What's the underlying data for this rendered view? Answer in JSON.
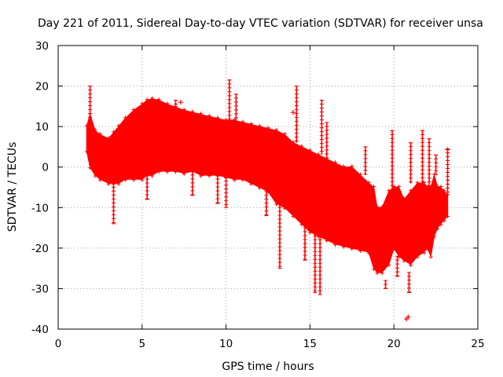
{
  "chart_data": {
    "type": "scatter",
    "title": "Day 221 of 2011, Sidereal Day-to-day VTEC variation (SDTVAR) for receiver unsa",
    "xlabel": "GPS time / hours",
    "ylabel": "SDTVAR / TECUs",
    "xlim": [
      0,
      25
    ],
    "ylim": [
      -40,
      30
    ],
    "xticks": [
      0,
      5,
      10,
      15,
      20,
      25
    ],
    "yticks": [
      -40,
      -30,
      -20,
      -10,
      0,
      10,
      20,
      30
    ],
    "xtick_labels": [
      "0",
      "5",
      "10",
      "15",
      "20",
      "25"
    ],
    "ytick_labels": [
      "-40",
      "-30",
      "-20",
      "-10",
      "0",
      "10",
      "20",
      "30"
    ],
    "grid": true,
    "marker": "+",
    "color": "#ff0000",
    "series": [
      {
        "name": "SDTVAR",
        "envelope": {
          "x": [
            1.7,
            1.9,
            2.2,
            2.5,
            3.0,
            3.3,
            3.6,
            4.0,
            4.5,
            5.0,
            5.3,
            5.6,
            6.0,
            6.5,
            7.0,
            7.5,
            8.0,
            8.5,
            9.0,
            9.5,
            10.0,
            10.5,
            11.0,
            11.5,
            12.0,
            12.5,
            13.0,
            13.5,
            14.0,
            14.5,
            15.0,
            15.5,
            16.0,
            16.5,
            17.0,
            17.5,
            18.0,
            18.5,
            18.8,
            19.0,
            19.3,
            19.7,
            20.0,
            20.3,
            20.6,
            21.0,
            21.4,
            21.8,
            22.0,
            22.2,
            22.4,
            22.6,
            22.8,
            23.0,
            23.2
          ],
          "upper": [
            10,
            13,
            9,
            8,
            7,
            8.5,
            10,
            12,
            14,
            15.5,
            16.5,
            16.8,
            16.5,
            15.5,
            14.8,
            14,
            13.5,
            13,
            12.5,
            12,
            11.5,
            11.5,
            11,
            10.5,
            10,
            9.5,
            9,
            8,
            6,
            5,
            4,
            3,
            2,
            1,
            0,
            0,
            -2,
            -4,
            -5,
            -10,
            -10,
            -6,
            -5,
            -5,
            -8,
            -6,
            -4,
            -4,
            -5,
            -5,
            -2,
            -5,
            -5,
            -6,
            -7
          ],
          "lower": [
            4,
            0,
            -2,
            -3,
            -4,
            -4,
            -4,
            -3,
            -3,
            -3,
            -2,
            -2,
            -1,
            -1,
            -1,
            -1.5,
            -1,
            -2,
            -2,
            -2,
            -2.5,
            -3,
            -3,
            -4,
            -5,
            -6,
            -9,
            -10,
            -12,
            -14,
            -16,
            -17,
            -18,
            -19,
            -19.5,
            -20,
            -20.5,
            -21,
            -25,
            -26,
            -26,
            -24,
            -20,
            -22,
            -23,
            -24,
            -22,
            -21,
            -20,
            -22,
            -17,
            -15,
            -14,
            -13,
            -12
          ]
        },
        "spikes": [
          {
            "x": 1.9,
            "y1": 10,
            "y2": 20
          },
          {
            "x": 3.3,
            "y1": -4,
            "y2": -14
          },
          {
            "x": 5.3,
            "y1": -2,
            "y2": -8
          },
          {
            "x": 7.0,
            "y1": 14,
            "y2": 16.5
          },
          {
            "x": 8.0,
            "y1": -1,
            "y2": -7
          },
          {
            "x": 9.5,
            "y1": -2,
            "y2": -9
          },
          {
            "x": 10.0,
            "y1": -2.5,
            "y2": -10
          },
          {
            "x": 10.2,
            "y1": 11.5,
            "y2": 21.5
          },
          {
            "x": 10.6,
            "y1": 11.5,
            "y2": 18
          },
          {
            "x": 12.4,
            "y1": -6,
            "y2": -12
          },
          {
            "x": 13.2,
            "y1": -9,
            "y2": -25
          },
          {
            "x": 14.2,
            "y1": 6,
            "y2": 20
          },
          {
            "x": 14.7,
            "y1": -14,
            "y2": -23
          },
          {
            "x": 15.3,
            "y1": -16,
            "y2": -31
          },
          {
            "x": 15.6,
            "y1": -16,
            "y2": -31.5
          },
          {
            "x": 15.7,
            "y1": 3,
            "y2": 16.5
          },
          {
            "x": 16.0,
            "y1": 2,
            "y2": 11
          },
          {
            "x": 18.3,
            "y1": -2,
            "y2": 5
          },
          {
            "x": 19.5,
            "y1": -28,
            "y2": -30
          },
          {
            "x": 19.9,
            "y1": -10,
            "y2": 9
          },
          {
            "x": 20.2,
            "y1": -22,
            "y2": -27
          },
          {
            "x": 20.9,
            "y1": -26,
            "y2": -31
          },
          {
            "x": 21.0,
            "y1": -4,
            "y2": 6
          },
          {
            "x": 21.7,
            "y1": -4,
            "y2": 9
          },
          {
            "x": 22.1,
            "y1": -5,
            "y2": 7
          },
          {
            "x": 22.5,
            "y1": -2,
            "y2": 3
          },
          {
            "x": 23.2,
            "y1": -7,
            "y2": 4.5
          }
        ],
        "outliers": [
          {
            "x": 20.75,
            "y": -37.5
          },
          {
            "x": 20.85,
            "y": -37.0
          },
          {
            "x": 7.3,
            "y": 16.0
          },
          {
            "x": 14.0,
            "y": 13.5
          },
          {
            "x": 23.2,
            "y": 4.3
          }
        ]
      }
    ]
  }
}
